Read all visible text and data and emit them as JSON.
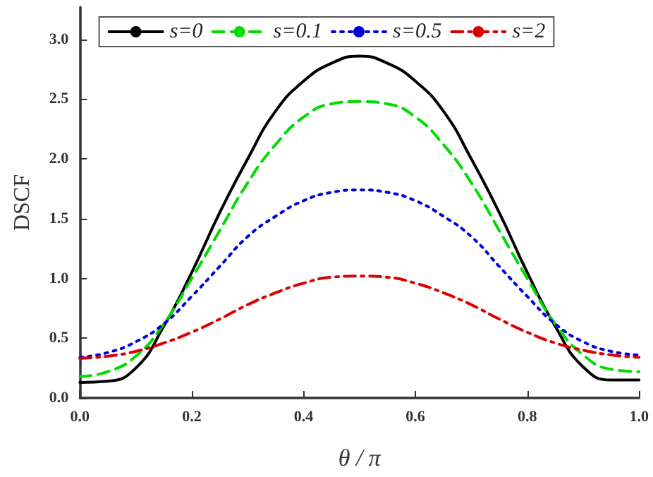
{
  "chart_data": {
    "type": "line",
    "xlabel": "θ / π",
    "ylabel": "DSCF",
    "x": [
      0,
      0.05,
      0.1,
      0.15,
      0.2,
      0.25,
      0.3,
      0.35,
      0.4,
      0.45,
      0.5,
      0.55,
      0.6,
      0.65,
      0.7,
      0.75,
      0.8,
      0.85,
      0.9,
      0.95,
      1.0
    ],
    "series": [
      {
        "name": "s=0",
        "color": "#000000",
        "line_style": "solid",
        "values": [
          0.13,
          0.14,
          0.25,
          0.6,
          1.05,
          1.55,
          2.0,
          2.4,
          2.65,
          2.8,
          2.86,
          2.8,
          2.65,
          2.4,
          2.0,
          1.55,
          1.05,
          0.6,
          0.26,
          0.15,
          0.15
        ]
      },
      {
        "name": "s=0.1",
        "color": "#00dd00",
        "line_style": "dashed",
        "values": [
          0.18,
          0.22,
          0.35,
          0.62,
          1.0,
          1.4,
          1.8,
          2.12,
          2.35,
          2.46,
          2.48,
          2.46,
          2.35,
          2.12,
          1.8,
          1.4,
          1.0,
          0.62,
          0.36,
          0.24,
          0.22
        ]
      },
      {
        "name": "s=0.5",
        "color": "#0000dd",
        "line_style": "dotted",
        "values": [
          0.34,
          0.38,
          0.47,
          0.62,
          0.85,
          1.1,
          1.35,
          1.52,
          1.65,
          1.72,
          1.74,
          1.72,
          1.65,
          1.52,
          1.35,
          1.1,
          0.85,
          0.62,
          0.47,
          0.39,
          0.36
        ]
      },
      {
        "name": "s=2",
        "color": "#dd0000",
        "line_style": "dashdot",
        "values": [
          0.33,
          0.35,
          0.39,
          0.46,
          0.55,
          0.66,
          0.78,
          0.88,
          0.96,
          1.01,
          1.02,
          1.01,
          0.96,
          0.88,
          0.78,
          0.66,
          0.55,
          0.46,
          0.4,
          0.36,
          0.34
        ]
      }
    ],
    "xlim": [
      0,
      1
    ],
    "xticks": [
      {
        "value": 0,
        "label": "0.0"
      },
      0.2,
      0.4,
      0.6,
      0.8,
      {
        "value": 1,
        "label": "1.0"
      }
    ],
    "ylim": [
      0,
      3.27
    ],
    "yticks": [
      {
        "value": 0,
        "label": "0.0"
      },
      0.5,
      {
        "value": 1,
        "label": "1.0"
      },
      1.5,
      {
        "value": 2,
        "label": "2.0"
      },
      2.5,
      {
        "value": 3,
        "label": "3.0"
      }
    ],
    "grid": false,
    "legend": "top",
    "marker": "none"
  }
}
